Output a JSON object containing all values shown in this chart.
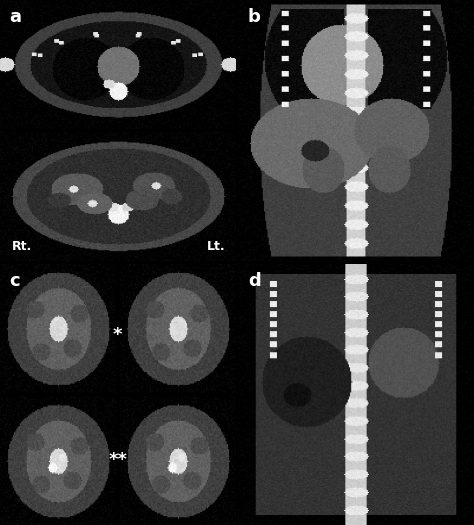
{
  "figure_width": 4.74,
  "figure_height": 5.25,
  "dpi": 100,
  "background_color": "#000000",
  "panel_labels": [
    "a",
    "b",
    "c",
    "d"
  ],
  "label_color": "#ffffff",
  "label_fontsize": 13,
  "label_fontweight": "bold",
  "text_Rt": "Rt.",
  "text_Lt": "Lt.",
  "text_star1": "*",
  "text_star2": "**",
  "text_color_white": "#ffffff",
  "text_fontsize_small": 9
}
